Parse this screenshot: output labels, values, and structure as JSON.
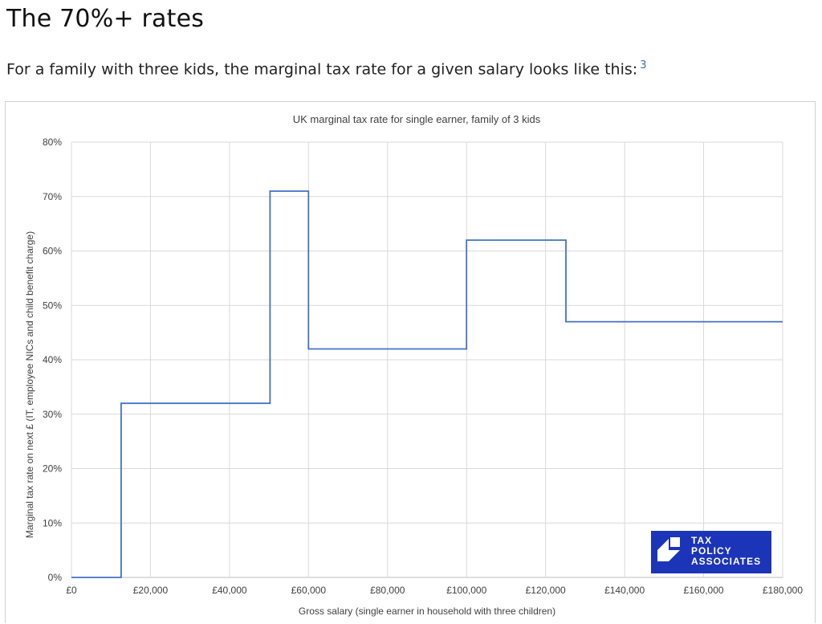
{
  "article": {
    "heading": "The 70%+ rates",
    "intro": "For a family with three kids, the marginal tax rate for a given salary looks like this:",
    "footnote": "3"
  },
  "chart_data": {
    "type": "line",
    "title": "UK marginal tax rate for single earner, family of 3 kids",
    "xlabel": "Gross salary (single earner in household with three children)",
    "ylabel": "Marginal tax rate on next £ (IT, employee NICs and child benefit charge)",
    "xlim": [
      0,
      180000
    ],
    "ylim": [
      0,
      0.8
    ],
    "x_ticks": [
      0,
      20000,
      40000,
      60000,
      80000,
      100000,
      120000,
      140000,
      160000,
      180000
    ],
    "x_tick_labels": [
      "£0",
      "£20,000",
      "£40,000",
      "£60,000",
      "£80,000",
      "£100,000",
      "£120,000",
      "£140,000",
      "£160,000",
      "£180,000"
    ],
    "y_ticks": [
      0,
      0.1,
      0.2,
      0.3,
      0.4,
      0.5,
      0.6,
      0.7,
      0.8
    ],
    "y_tick_labels": [
      "0%",
      "10%",
      "20%",
      "30%",
      "40%",
      "50%",
      "60%",
      "70%",
      "80%"
    ],
    "grid": true,
    "legend": "none",
    "line_color": "#4472c4",
    "series": [
      {
        "x": [
          0,
          12570,
          12570,
          50270,
          50270,
          60000,
          60000,
          100000,
          100000,
          125140,
          125140,
          180000
        ],
        "y": [
          0,
          0,
          0.32,
          0.32,
          0.71,
          0.71,
          0.42,
          0.42,
          0.62,
          0.62,
          0.47,
          0.47
        ]
      }
    ]
  },
  "logo": {
    "lines": [
      "TAX",
      "POLICY",
      "ASSOCIATES"
    ],
    "color": "#1c35b8"
  }
}
